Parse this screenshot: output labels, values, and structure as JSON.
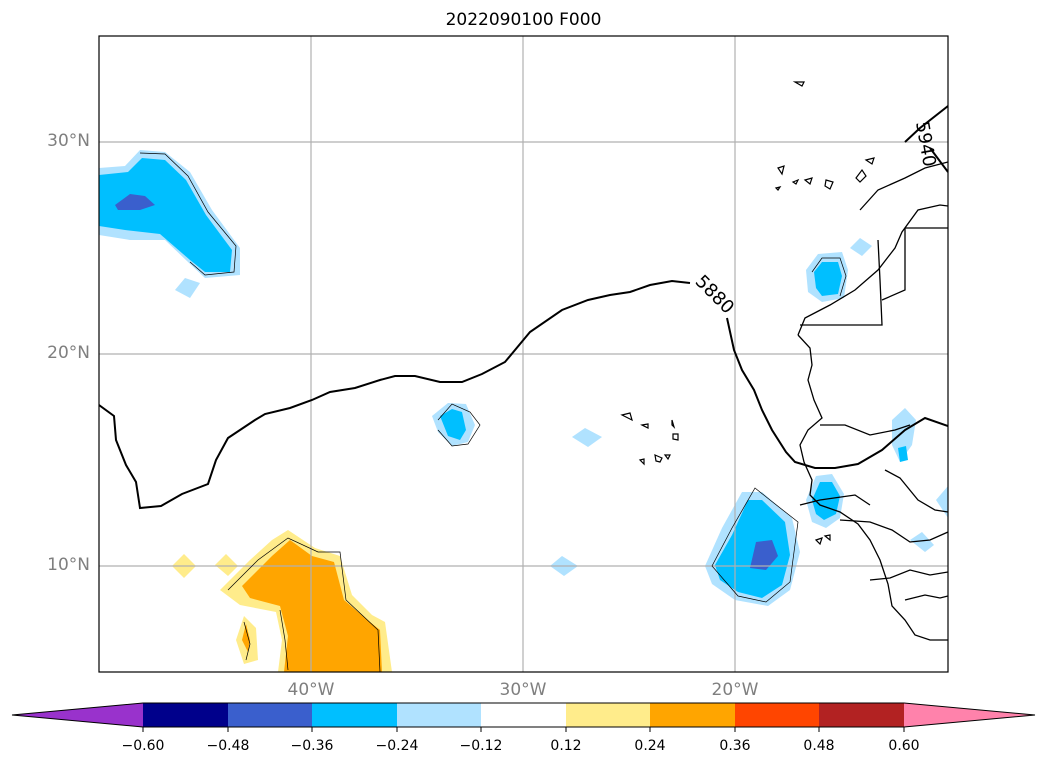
{
  "title": "2022090100 F000",
  "map": {
    "lat_ticks": [
      {
        "label": "30°N",
        "lat": 30
      },
      {
        "label": "20°N",
        "lat": 20
      },
      {
        "label": "10°N",
        "lat": 10
      }
    ],
    "lon_ticks": [
      {
        "label": "40°W",
        "lon": -40
      },
      {
        "label": "30°W",
        "lon": -30
      },
      {
        "label": "20°W",
        "lon": -20
      }
    ],
    "extent": {
      "lon_min": -50,
      "lon_max": -10,
      "lat_min": 5,
      "lat_max": 35
    },
    "contours": [
      {
        "label": "5880"
      },
      {
        "label": "5940"
      }
    ]
  },
  "colorbar": {
    "labels": [
      "−0.60",
      "−0.48",
      "−0.36",
      "−0.24",
      "−0.12",
      "0.12",
      "0.24",
      "0.36",
      "0.48",
      "0.60"
    ],
    "colors": [
      "#9932cc",
      "#00008b",
      "#3a5fcd",
      "#00bfff",
      "#b0e2ff",
      "#ffffff",
      "#ffec8b",
      "#ffa500",
      "#ff4500",
      "#b22222",
      "#ff82ab"
    ]
  }
}
